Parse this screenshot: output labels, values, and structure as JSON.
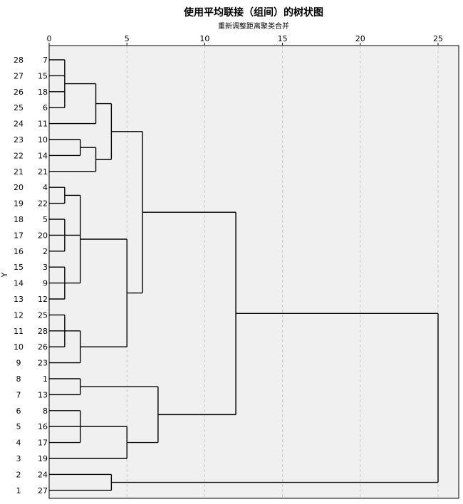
{
  "chart_data": {
    "type": "dendrogram",
    "title": "使用平均联接（组间）的树状图",
    "subtitle": "重新调整距离聚类合并",
    "ylabel": "Y",
    "xlim": [
      0,
      25
    ],
    "xticks": [
      0,
      5,
      10,
      15,
      20,
      25
    ],
    "grid": true,
    "leaves": [
      7,
      15,
      18,
      6,
      11,
      10,
      14,
      21,
      4,
      22,
      5,
      20,
      2,
      3,
      9,
      12,
      25,
      28,
      26,
      23,
      1,
      13,
      8,
      16,
      17,
      19,
      24,
      27
    ],
    "positions": [
      28,
      27,
      26,
      25,
      24,
      23,
      22,
      21,
      20,
      19,
      18,
      17,
      16,
      15,
      14,
      13,
      12,
      11,
      10,
      9,
      8,
      7,
      6,
      5,
      4,
      3,
      2,
      1
    ],
    "merges": [
      {
        "id": "A",
        "children": [
          7,
          15,
          18,
          6
        ],
        "height": 1
      },
      {
        "id": "B",
        "children": [
          "A",
          11
        ],
        "height": 3
      },
      {
        "id": "C",
        "children": [
          10,
          14
        ],
        "height": 2
      },
      {
        "id": "D",
        "children": [
          "C",
          21
        ],
        "height": 3
      },
      {
        "id": "E",
        "children": [
          "B",
          "D"
        ],
        "height": 4
      },
      {
        "id": "F",
        "children": [
          4,
          22
        ],
        "height": 1
      },
      {
        "id": "G",
        "children": [
          5,
          20,
          2
        ],
        "height": 1
      },
      {
        "id": "H",
        "children": [
          3,
          9,
          12
        ],
        "height": 1
      },
      {
        "id": "I",
        "children": [
          "F",
          "G",
          "H"
        ],
        "height": 2
      },
      {
        "id": "J",
        "children": [
          25,
          28,
          26
        ],
        "height": 1
      },
      {
        "id": "K",
        "children": [
          "J",
          23
        ],
        "height": 2
      },
      {
        "id": "L",
        "children": [
          "I",
          "K"
        ],
        "height": 5
      },
      {
        "id": "M",
        "children": [
          "E",
          "L"
        ],
        "height": 6
      },
      {
        "id": "N",
        "children": [
          1,
          13
        ],
        "height": 2
      },
      {
        "id": "O",
        "children": [
          8,
          16,
          17
        ],
        "height": 2
      },
      {
        "id": "P",
        "children": [
          "O",
          19
        ],
        "height": 5
      },
      {
        "id": "Q",
        "children": [
          "N",
          "P"
        ],
        "height": 7
      },
      {
        "id": "R",
        "children": [
          "M",
          "Q"
        ],
        "height": 12
      },
      {
        "id": "S",
        "children": [
          24,
          27
        ],
        "height": 4
      },
      {
        "id": "T",
        "children": [
          "R",
          "S"
        ],
        "height": 25
      }
    ]
  }
}
